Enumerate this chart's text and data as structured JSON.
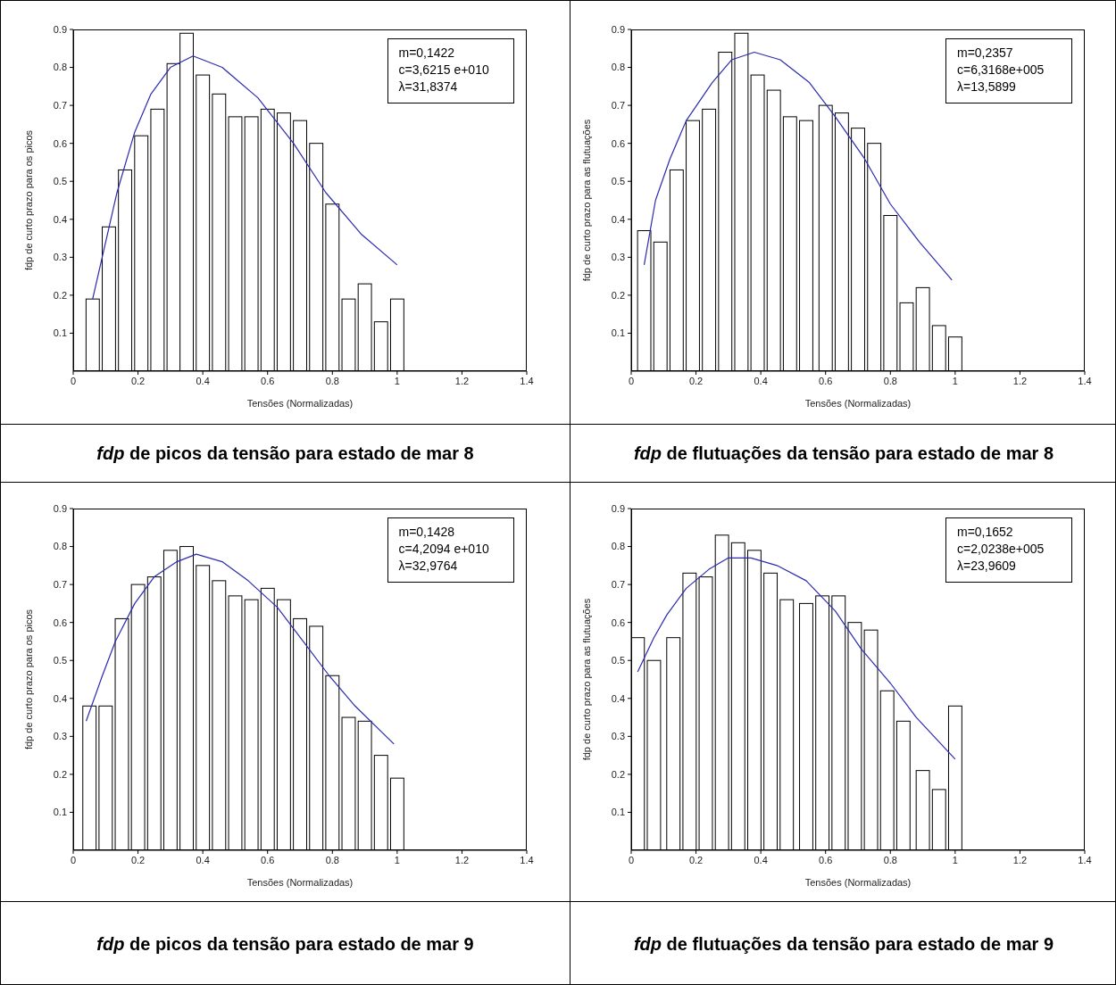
{
  "chart_data": [
    {
      "type": "bar",
      "title": "fdp de picos da tensão para estado de mar 8",
      "xlabel": "Tensões (Normalizadas)",
      "ylabel": "fdp de curto prazo para os picos",
      "annotations": [
        "m=0,1422",
        "c=3,6215 e+010",
        "λ=31,8374"
      ],
      "xlim": [
        0,
        1.4
      ],
      "xticks": [
        0,
        0.2,
        0.4,
        0.6,
        0.8,
        1,
        1.2,
        1.4
      ],
      "ylim": [
        0,
        0.9
      ],
      "yticks": [
        0.1,
        0.2,
        0.3,
        0.4,
        0.5,
        0.6,
        0.7,
        0.8,
        0.9
      ],
      "series": [
        {
          "color": "#ffffff",
          "x": [
            0.06,
            0.11,
            0.16,
            0.21,
            0.26,
            0.31,
            0.35,
            0.4,
            0.45,
            0.5,
            0.55,
            0.6,
            0.65,
            0.7,
            0.75,
            0.8,
            0.85,
            0.9,
            0.95,
            1.0
          ],
          "values": [
            0.19,
            0.38,
            0.53,
            0.62,
            0.69,
            0.81,
            0.89,
            0.78,
            0.73,
            0.67,
            0.67,
            0.69,
            0.68,
            0.66,
            0.6,
            0.44,
            0.19,
            0.23,
            0.13,
            0.19
          ]
        },
        {
          "type": "line",
          "color": "#2b2bb0",
          "x": [
            0.06,
            0.135,
            0.19,
            0.24,
            0.3,
            0.37,
            0.46,
            0.57,
            0.68,
            0.78,
            0.89,
            1.0
          ],
          "values": [
            0.19,
            0.47,
            0.63,
            0.73,
            0.8,
            0.83,
            0.8,
            0.72,
            0.6,
            0.47,
            0.36,
            0.28
          ]
        }
      ]
    },
    {
      "type": "bar",
      "title": "fdp de flutuações da tensão para estado de mar 8",
      "xlabel": "Tensões (Normalizadas)",
      "ylabel": "fdp de curto prazo para as flutuações",
      "annotations": [
        "m=0,2357",
        "c=6,3168e+005",
        "λ=13,5899"
      ],
      "xlim": [
        0,
        1.4
      ],
      "xticks": [
        0,
        0.2,
        0.4,
        0.6,
        0.8,
        1,
        1.2,
        1.4
      ],
      "ylim": [
        0,
        0.9
      ],
      "yticks": [
        0.1,
        0.2,
        0.3,
        0.4,
        0.5,
        0.6,
        0.7,
        0.8,
        0.9
      ],
      "series": [
        {
          "color": "#ffffff",
          "x": [
            0.04,
            0.09,
            0.14,
            0.19,
            0.24,
            0.29,
            0.34,
            0.39,
            0.44,
            0.49,
            0.54,
            0.6,
            0.65,
            0.7,
            0.75,
            0.8,
            0.85,
            0.9,
            0.95,
            1.0
          ],
          "values": [
            0.37,
            0.34,
            0.53,
            0.66,
            0.69,
            0.84,
            0.89,
            0.78,
            0.74,
            0.67,
            0.66,
            0.7,
            0.68,
            0.64,
            0.6,
            0.41,
            0.18,
            0.22,
            0.12,
            0.09
          ]
        },
        {
          "type": "line",
          "color": "#2b2bb0",
          "x": [
            0.04,
            0.075,
            0.12,
            0.17,
            0.25,
            0.31,
            0.38,
            0.46,
            0.55,
            0.63,
            0.72,
            0.8,
            0.89,
            0.99
          ],
          "values": [
            0.28,
            0.45,
            0.56,
            0.66,
            0.76,
            0.82,
            0.84,
            0.82,
            0.76,
            0.67,
            0.56,
            0.44,
            0.34,
            0.24
          ]
        }
      ]
    },
    {
      "type": "bar",
      "title": "fdp de picos da tensão para estado de mar 9",
      "xlabel": "Tensões (Normalizadas)",
      "ylabel": "fdp de curto prazo para os picos",
      "annotations": [
        "m=0,1428",
        "c=4,2094 e+010",
        "λ=32,9764"
      ],
      "xlim": [
        0,
        1.4
      ],
      "xticks": [
        0,
        0.2,
        0.4,
        0.6,
        0.8,
        1,
        1.2,
        1.4
      ],
      "ylim": [
        0,
        0.9
      ],
      "yticks": [
        0.1,
        0.2,
        0.3,
        0.4,
        0.5,
        0.6,
        0.7,
        0.8,
        0.9
      ],
      "series": [
        {
          "color": "#ffffff",
          "x": [
            0.05,
            0.1,
            0.15,
            0.2,
            0.25,
            0.3,
            0.35,
            0.4,
            0.45,
            0.5,
            0.55,
            0.6,
            0.65,
            0.7,
            0.75,
            0.8,
            0.85,
            0.9,
            0.95,
            1.0
          ],
          "values": [
            0.38,
            0.38,
            0.61,
            0.7,
            0.72,
            0.79,
            0.8,
            0.75,
            0.71,
            0.67,
            0.66,
            0.69,
            0.66,
            0.61,
            0.59,
            0.46,
            0.35,
            0.34,
            0.25,
            0.19
          ]
        },
        {
          "type": "line",
          "color": "#2b2bb0",
          "x": [
            0.04,
            0.09,
            0.13,
            0.19,
            0.25,
            0.32,
            0.38,
            0.46,
            0.54,
            0.63,
            0.71,
            0.79,
            0.87,
            0.99
          ],
          "values": [
            0.34,
            0.46,
            0.55,
            0.65,
            0.72,
            0.76,
            0.78,
            0.76,
            0.71,
            0.64,
            0.55,
            0.46,
            0.38,
            0.28
          ]
        }
      ]
    },
    {
      "type": "bar",
      "title": "fdp de flutuações da tensão para estado de mar 9",
      "xlabel": "Tensões (Normalizadas)",
      "ylabel": "fdp de curto prazo para as flutuações",
      "annotations": [
        "m=0,1652",
        "c=2,0238e+005",
        "λ=23,9609"
      ],
      "xlim": [
        0,
        1.4
      ],
      "xticks": [
        0,
        0.2,
        0.4,
        0.6,
        0.8,
        1,
        1.2,
        1.4
      ],
      "ylim": [
        0,
        0.9
      ],
      "yticks": [
        0.1,
        0.2,
        0.3,
        0.4,
        0.5,
        0.6,
        0.7,
        0.8,
        0.9
      ],
      "series": [
        {
          "color": "#ffffff",
          "x": [
            0.02,
            0.07,
            0.13,
            0.18,
            0.23,
            0.28,
            0.33,
            0.38,
            0.43,
            0.48,
            0.54,
            0.59,
            0.64,
            0.69,
            0.74,
            0.79,
            0.84,
            0.9,
            0.95,
            1.0
          ],
          "values": [
            0.56,
            0.5,
            0.56,
            0.73,
            0.72,
            0.83,
            0.81,
            0.79,
            0.73,
            0.66,
            0.65,
            0.67,
            0.67,
            0.6,
            0.58,
            0.42,
            0.34,
            0.21,
            0.16,
            0.38
          ]
        },
        {
          "type": "line",
          "color": "#2b2bb0",
          "x": [
            0.02,
            0.07,
            0.11,
            0.17,
            0.24,
            0.3,
            0.37,
            0.45,
            0.54,
            0.63,
            0.71,
            0.8,
            0.88,
            1.0
          ],
          "values": [
            0.47,
            0.56,
            0.62,
            0.69,
            0.74,
            0.77,
            0.77,
            0.75,
            0.71,
            0.63,
            0.53,
            0.44,
            0.35,
            0.24
          ]
        }
      ]
    }
  ]
}
